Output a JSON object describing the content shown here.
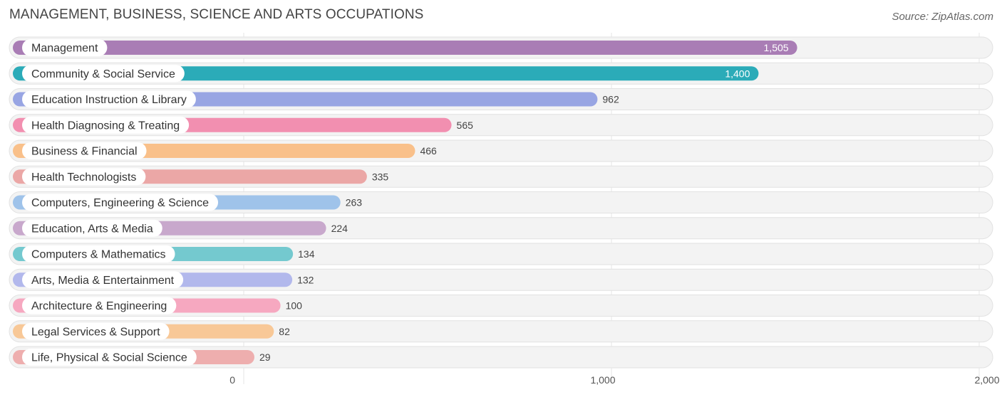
{
  "title": "MANAGEMENT, BUSINESS, SCIENCE AND ARTS OCCUPATIONS",
  "source": "Source: ZipAtlas.com",
  "chart_data": {
    "type": "bar",
    "orientation": "horizontal",
    "categories": [
      "Management",
      "Community & Social Service",
      "Education Instruction & Library",
      "Health Diagnosing & Treating",
      "Business & Financial",
      "Health Technologists",
      "Computers, Engineering & Science",
      "Education, Arts & Media",
      "Computers & Mathematics",
      "Arts, Media & Entertainment",
      "Architecture & Engineering",
      "Legal Services & Support",
      "Life, Physical & Social Science"
    ],
    "values": [
      1505,
      1400,
      962,
      565,
      466,
      335,
      263,
      224,
      134,
      132,
      100,
      82,
      29
    ],
    "value_labels": [
      "1,505",
      "1,400",
      "962",
      "565",
      "466",
      "335",
      "263",
      "224",
      "134",
      "132",
      "100",
      "82",
      "29"
    ],
    "colors": [
      "#a97db5",
      "#2babb8",
      "#98a5e3",
      "#f28fb0",
      "#f9c08a",
      "#eba7a6",
      "#9fc3ea",
      "#c8a8cc",
      "#74c9cf",
      "#b2b8ec",
      "#f6a8c0",
      "#f8c897",
      "#eeaeae"
    ],
    "x_ticks": [
      0,
      1000,
      2000
    ],
    "x_tick_labels": [
      "0",
      "1,000",
      "2,000"
    ],
    "xlim": [
      0,
      2000
    ],
    "grid": true
  }
}
